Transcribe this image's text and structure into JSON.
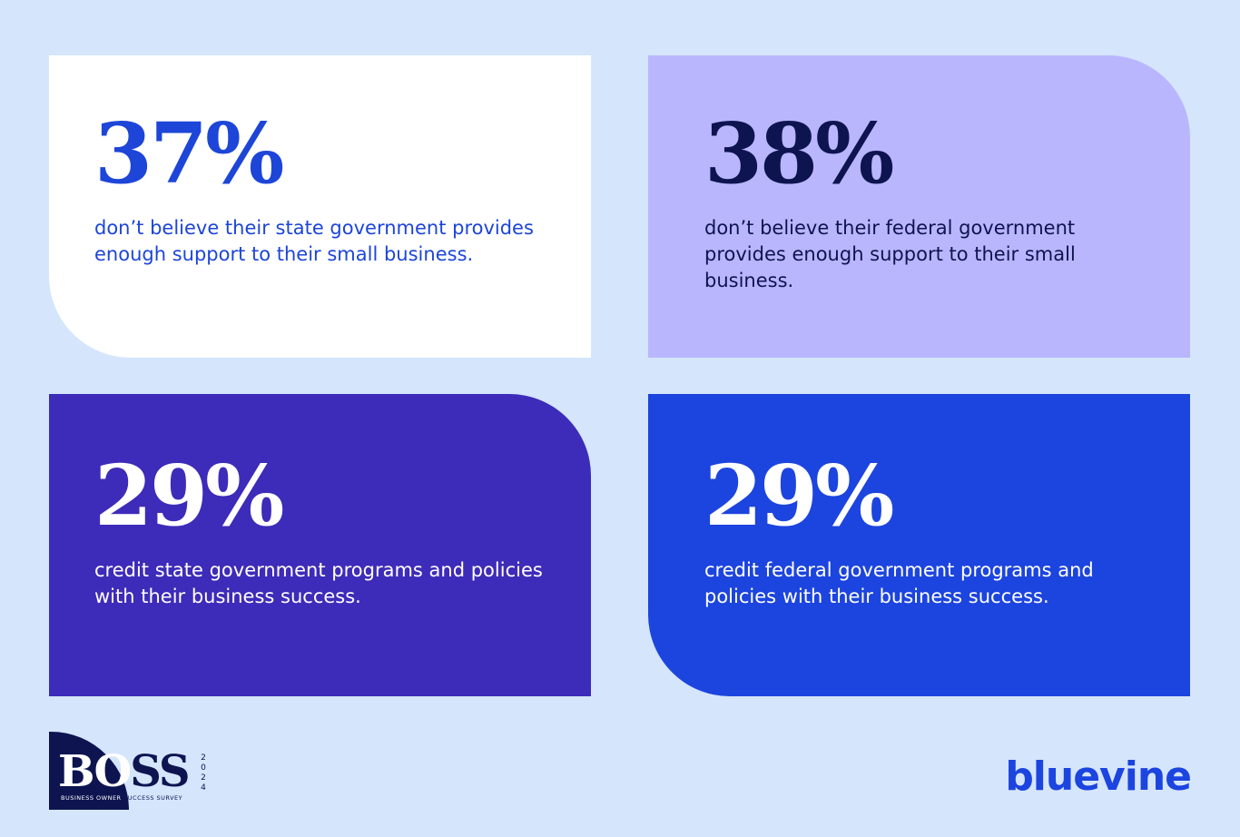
{
  "colors": {
    "background": "#d5e5fc",
    "card_white": "#ffffff",
    "card_lavender": "#b9b6fe",
    "card_purple": "#3d2bb9",
    "card_blue": "#1c44df",
    "brand_blue": "#1c44df",
    "navy": "#0e1450"
  },
  "stats": [
    {
      "value": "37%",
      "description": "don’t believe their state government provides enough support to their small business."
    },
    {
      "value": "38%",
      "description": "don’t believe their federal government provides enough support to their small business."
    },
    {
      "value": "29%",
      "description": "credit state government programs and policies with their business success."
    },
    {
      "value": "29%",
      "description": "credit federal government programs and policies with their business success."
    }
  ],
  "footer": {
    "survey_logo": {
      "wordmark_first": "BO",
      "wordmark_rest": "SS",
      "year": "2024",
      "tagline_part1": "BUSINESS OWNER",
      "tagline_part2": " SUCCESS SURVEY"
    },
    "brand_logo": "bluevine"
  }
}
